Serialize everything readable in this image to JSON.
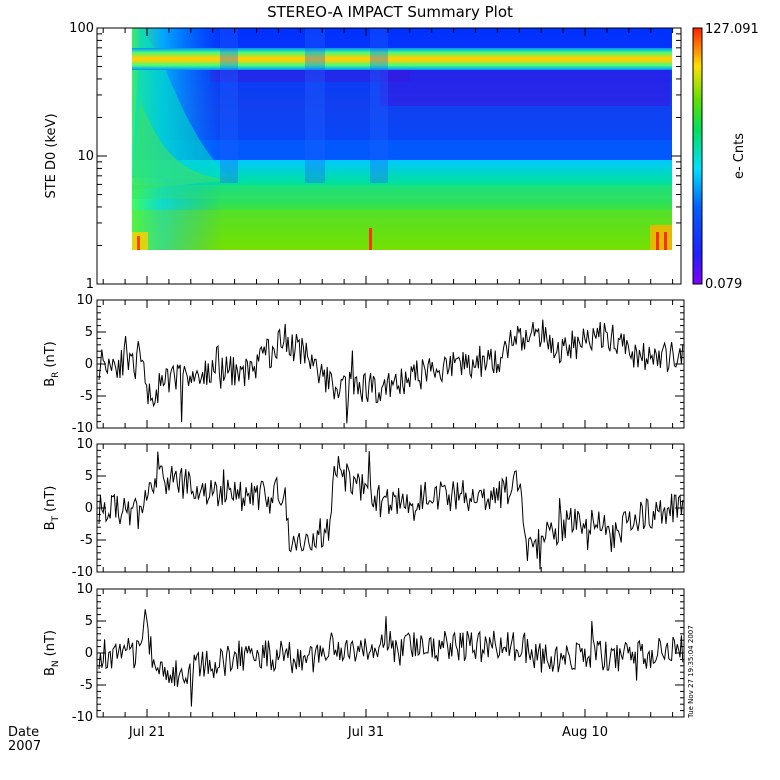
{
  "chart_data": [
    {
      "type": "heatmap",
      "title": "STEREO-A IMPACT Summary Plot",
      "ylabel": "STE D0 (keV)",
      "yscale": "log",
      "ylim": [
        1,
        100
      ],
      "y_ticks": [
        "1",
        "10",
        "100"
      ],
      "colorbar": {
        "label": "e- Cnts",
        "max": "127.091",
        "min": "0.079"
      }
    },
    {
      "type": "line",
      "ylabel": "B",
      "ylabel_sub": "R",
      "ylabel_unit": "(nT)",
      "ylim": [
        -10,
        10
      ],
      "y_ticks": [
        "10",
        "5",
        "0",
        "-5",
        "-10"
      ]
    },
    {
      "type": "line",
      "ylabel": "B",
      "ylabel_sub": "T",
      "ylabel_unit": "(nT)",
      "ylim": [
        -10,
        10
      ],
      "y_ticks": [
        "10",
        "5",
        "0",
        "-5",
        "-10"
      ]
    },
    {
      "type": "line",
      "ylabel": "B",
      "ylabel_sub": "N",
      "ylabel_unit": "(nT)",
      "ylim": [
        -10,
        10
      ],
      "y_ticks": [
        "10",
        "5",
        "0",
        "-5",
        "-10"
      ]
    }
  ],
  "x_axis": {
    "date_label": "Date",
    "year_label": "2007",
    "tick_labels": [
      "Jul 21",
      "Jul 31",
      "Aug 10"
    ]
  },
  "timestamp": "Tue Nov 27 19:35:04 2007",
  "colors": {
    "trace": "#000000",
    "background": "#ffffff"
  }
}
